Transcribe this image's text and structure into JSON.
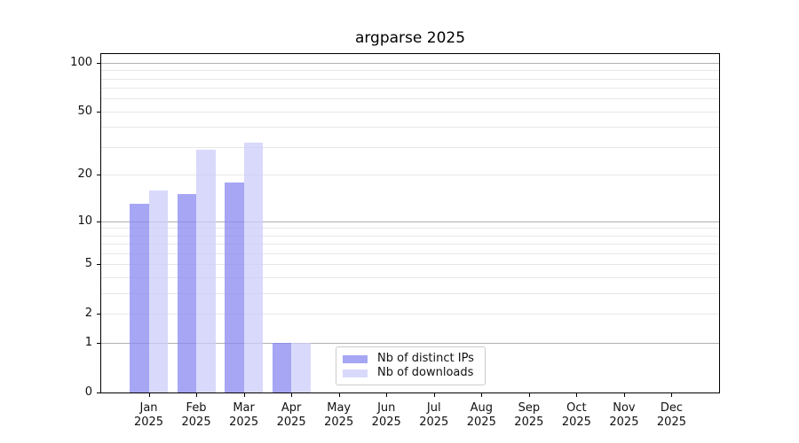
{
  "title": "argparse 2025",
  "colors": {
    "bar_distinct_ips": "rgba(136,136,242,0.75)",
    "bar_downloads": "rgba(204,204,250,0.75)",
    "grid_major": "#b0b0b0",
    "grid_minor": "#e7e7e7",
    "axis": "#000000",
    "text": "#1a1a1a",
    "legend_border": "#cccccc",
    "legend_bg": "rgba(255,255,255,0.9)"
  },
  "legend": {
    "items": [
      {
        "label": "Nb of distinct IPs",
        "color_key": "bar_distinct_ips"
      },
      {
        "label": "Nb of downloads",
        "color_key": "bar_downloads"
      }
    ]
  },
  "chart_data": {
    "type": "bar",
    "title": "argparse 2025",
    "x_months": [
      "Jan",
      "Feb",
      "Mar",
      "Apr",
      "May",
      "Jun",
      "Jul",
      "Aug",
      "Sep",
      "Oct",
      "Nov",
      "Dec"
    ],
    "x_year": "2025",
    "categories": [
      "Jan 2025",
      "Feb 2025",
      "Mar 2025",
      "Apr 2025",
      "May 2025",
      "Jun 2025",
      "Jul 2025",
      "Aug 2025",
      "Sep 2025",
      "Oct 2025",
      "Nov 2025",
      "Dec 2025"
    ],
    "series": [
      {
        "name": "Nb of distinct IPs",
        "key": "bar_distinct_ips",
        "values": [
          13,
          15,
          18,
          1,
          0,
          0,
          0,
          0,
          0,
          0,
          0,
          0
        ]
      },
      {
        "name": "Nb of downloads",
        "key": "bar_downloads",
        "values": [
          16,
          29,
          32,
          1,
          0,
          0,
          0,
          0,
          0,
          0,
          0,
          0
        ]
      }
    ],
    "yscale": "log1p",
    "ylim": [
      0,
      113
    ],
    "yticks": [
      0,
      1,
      2,
      5,
      10,
      20,
      50,
      100
    ],
    "major_gridlines": [
      1,
      10,
      100
    ],
    "minor_gridlines": [
      2,
      3,
      4,
      5,
      6,
      7,
      8,
      9,
      20,
      30,
      40,
      50,
      60,
      70,
      80,
      90
    ],
    "grid": true,
    "legend_position": "lower center",
    "xlabel": "",
    "ylabel": ""
  }
}
